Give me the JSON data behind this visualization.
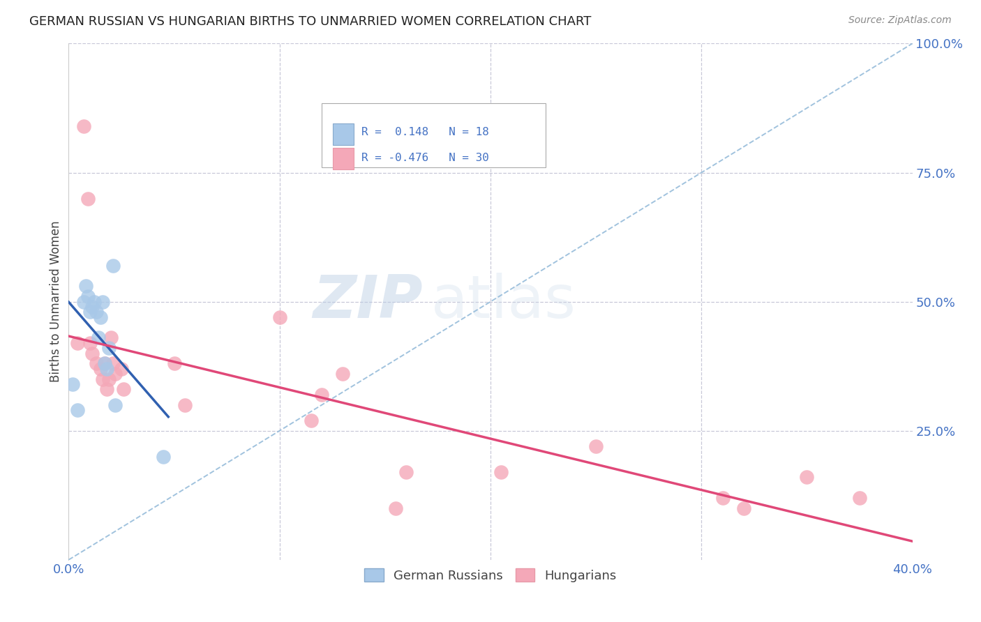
{
  "title": "GERMAN RUSSIAN VS HUNGARIAN BIRTHS TO UNMARRIED WOMEN CORRELATION CHART",
  "source": "Source: ZipAtlas.com",
  "ylabel": "Births to Unmarried Women",
  "xmin": 0.0,
  "xmax": 0.4,
  "ymin": 0.0,
  "ymax": 1.0,
  "watermark_zip": "ZIP",
  "watermark_atlas": "atlas",
  "color_german": "#a8c8e8",
  "color_hungarian": "#f4a8b8",
  "color_trendline_german": "#3060b0",
  "color_trendline_hungarian": "#e04878",
  "color_dashed_line": "#90b8d8",
  "background_color": "#ffffff",
  "grid_color": "#c8c8d8",
  "title_color": "#222222",
  "axis_label_color": "#444444",
  "tick_color": "#4472c4",
  "legend_r_color": "#4472c4",
  "german_x": [
    0.002,
    0.004,
    0.007,
    0.008,
    0.009,
    0.01,
    0.011,
    0.012,
    0.013,
    0.014,
    0.015,
    0.016,
    0.017,
    0.018,
    0.019,
    0.021,
    0.022,
    0.045
  ],
  "german_y": [
    0.34,
    0.29,
    0.5,
    0.53,
    0.51,
    0.48,
    0.49,
    0.5,
    0.48,
    0.43,
    0.47,
    0.5,
    0.38,
    0.37,
    0.41,
    0.57,
    0.3,
    0.2
  ],
  "hungarian_x": [
    0.004,
    0.007,
    0.009,
    0.01,
    0.011,
    0.013,
    0.015,
    0.016,
    0.017,
    0.018,
    0.019,
    0.02,
    0.021,
    0.022,
    0.025,
    0.026,
    0.05,
    0.055,
    0.1,
    0.115,
    0.12,
    0.13,
    0.155,
    0.16,
    0.205,
    0.25,
    0.31,
    0.32,
    0.35,
    0.375
  ],
  "hungarian_y": [
    0.42,
    0.84,
    0.7,
    0.42,
    0.4,
    0.38,
    0.37,
    0.35,
    0.38,
    0.33,
    0.35,
    0.43,
    0.38,
    0.36,
    0.37,
    0.33,
    0.38,
    0.3,
    0.47,
    0.27,
    0.32,
    0.36,
    0.1,
    0.17,
    0.17,
    0.22,
    0.12,
    0.1,
    0.16,
    0.12
  ]
}
